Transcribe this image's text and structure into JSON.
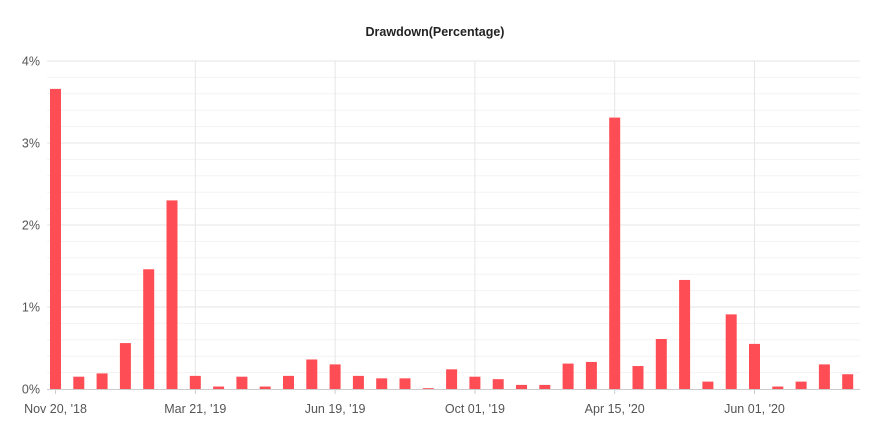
{
  "chart_data": {
    "type": "bar",
    "title": "Drawdown(Percentage)",
    "xlabel": "",
    "ylabel": "",
    "ylim": [
      0,
      4
    ],
    "y_ticks": [
      "0%",
      "1%",
      "2%",
      "3%",
      "4%"
    ],
    "x_tick_labels": [
      "Nov 20, '18",
      "Mar 21, '19",
      "Jun 19, '19",
      "Oct 01, '19",
      "Apr 15, '20",
      "Jun 01, '20"
    ],
    "grid": true,
    "legend": "none",
    "bar_color": "#ff4d55",
    "values": [
      3.66,
      0.15,
      0.19,
      0.56,
      1.46,
      2.3,
      0.16,
      0.03,
      0.15,
      0.03,
      0.16,
      0.36,
      0.3,
      0.16,
      0.13,
      0.13,
      0.01,
      0.24,
      0.15,
      0.12,
      0.05,
      0.05,
      0.31,
      0.33,
      3.31,
      0.28,
      0.61,
      1.33,
      0.09,
      0.91,
      0.55,
      0.03,
      0.09,
      0.3,
      0.18
    ]
  }
}
